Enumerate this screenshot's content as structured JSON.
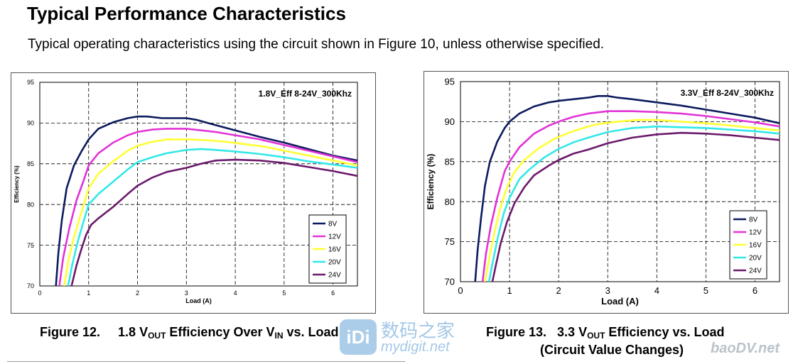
{
  "page": {
    "title": "Typical Performance Characteristics",
    "subtitle": "Typical operating characteristics using the circuit shown in Figure 10, unless otherwise specified."
  },
  "captions": {
    "fig12": {
      "prefix": "Figure 12.",
      "pre": "1.8 V",
      "sub1": "OUT",
      "mid": " Efficiency Over V",
      "sub2": "IN",
      "post": " vs. Load"
    },
    "fig13": {
      "prefix": "Figure 13.",
      "pre": "3.3 V",
      "sub1": "OUT",
      "post": " Efficiency vs. Load",
      "line2": "(Circuit Value Changes)"
    }
  },
  "watermarks": {
    "cn": "数码之家",
    "en": "mydigit.net",
    "logo": "iDi",
    "other": "baoDV.net"
  },
  "colors": {
    "8V": "#0d1b5e",
    "12V": "#e233d6",
    "16V": "#ffff33",
    "20V": "#33e8e8",
    "24V": "#6b1a6b"
  },
  "chart_data": [
    {
      "type": "line",
      "title": "1.8V_Eff 8-24V_300Khz",
      "xlabel": "Load (A)",
      "ylabel": "Efficiency (%)",
      "xlim": [
        0,
        6.5
      ],
      "ylim": [
        70,
        95
      ],
      "xticks": [
        0,
        1,
        2,
        3,
        4,
        5,
        6
      ],
      "yticks": [
        70,
        75,
        80,
        85,
        90,
        95
      ],
      "grid": "dashed",
      "legend_position": "bottom-right",
      "series": [
        {
          "name": "8V",
          "x": [
            0.33,
            0.38,
            0.45,
            0.55,
            0.7,
            0.85,
            1.0,
            1.2,
            1.5,
            1.8,
            2.0,
            2.2,
            2.5,
            2.8,
            3.0,
            3.2,
            3.5,
            4.0,
            4.5,
            5.0,
            5.5,
            6.0,
            6.5
          ],
          "y": [
            70.0,
            74.0,
            78.0,
            82.0,
            84.8,
            86.5,
            88.0,
            89.3,
            90.1,
            90.6,
            90.8,
            90.8,
            90.6,
            90.6,
            90.6,
            90.4,
            89.9,
            89.1,
            88.3,
            87.6,
            86.8,
            86.0,
            85.4
          ]
        },
        {
          "name": "12V",
          "x": [
            0.4,
            0.48,
            0.6,
            0.75,
            0.9,
            1.0,
            1.2,
            1.5,
            1.8,
            2.0,
            2.3,
            2.6,
            3.0,
            3.3,
            3.6,
            4.0,
            4.5,
            5.0,
            5.5,
            6.0,
            6.5
          ],
          "y": [
            70.0,
            73.5,
            77.0,
            80.5,
            83.0,
            84.8,
            86.3,
            87.6,
            88.5,
            88.9,
            89.2,
            89.3,
            89.3,
            89.1,
            88.9,
            88.5,
            88.0,
            87.3,
            86.6,
            85.9,
            85.2
          ]
        },
        {
          "name": "16V",
          "x": [
            0.5,
            0.58,
            0.7,
            0.85,
            1.0,
            1.2,
            1.5,
            1.8,
            2.0,
            2.3,
            2.6,
            3.0,
            3.4,
            3.8,
            4.2,
            4.6,
            5.0,
            5.5,
            6.0,
            6.5
          ],
          "y": [
            70.0,
            73.0,
            76.0,
            79.0,
            82.0,
            83.8,
            85.3,
            86.6,
            87.2,
            87.7,
            88.0,
            88.0,
            87.9,
            87.7,
            87.4,
            87.1,
            86.6,
            86.0,
            85.4,
            84.8
          ]
        },
        {
          "name": "20V",
          "x": [
            0.58,
            0.66,
            0.78,
            0.9,
            1.0,
            1.2,
            1.5,
            1.8,
            2.0,
            2.3,
            2.6,
            3.0,
            3.3,
            3.6,
            4.0,
            4.5,
            5.0,
            5.5,
            6.0,
            6.5
          ],
          "y": [
            70.0,
            72.5,
            75.5,
            78.0,
            80.0,
            81.3,
            82.8,
            84.3,
            85.2,
            85.8,
            86.3,
            86.7,
            86.8,
            86.7,
            86.5,
            86.2,
            85.8,
            85.3,
            84.9,
            84.5
          ]
        },
        {
          "name": "24V",
          "x": [
            0.65,
            0.75,
            0.85,
            0.95,
            1.05,
            1.2,
            1.5,
            1.8,
            2.0,
            2.3,
            2.6,
            3.0,
            3.3,
            3.6,
            4.0,
            4.5,
            5.0,
            5.5,
            6.0,
            6.5
          ],
          "y": [
            70.0,
            72.5,
            74.5,
            76.3,
            77.5,
            78.3,
            79.7,
            81.3,
            82.3,
            83.3,
            84.0,
            84.5,
            85.0,
            85.4,
            85.5,
            85.4,
            85.1,
            84.6,
            84.1,
            83.5
          ]
        }
      ]
    },
    {
      "type": "line",
      "title": "3.3V_Eff 8-24V_300Khz",
      "xlabel": "Load (A)",
      "ylabel": "Efficiency (%)",
      "xlim": [
        0,
        6.5
      ],
      "ylim": [
        70,
        95
      ],
      "xticks": [
        0,
        1,
        2,
        3,
        4,
        5,
        6
      ],
      "yticks": [
        70,
        75,
        80,
        85,
        90,
        95
      ],
      "grid": "dashed",
      "legend_position": "bottom-right",
      "series": [
        {
          "name": "8V",
          "x": [
            0.3,
            0.35,
            0.42,
            0.5,
            0.6,
            0.75,
            0.9,
            1.0,
            1.2,
            1.5,
            1.8,
            2.0,
            2.3,
            2.6,
            2.8,
            3.0,
            3.2,
            3.5,
            4.0,
            4.5,
            5.0,
            5.5,
            6.0,
            6.5
          ],
          "y": [
            70.0,
            74.0,
            78.0,
            82.0,
            85.0,
            87.5,
            89.2,
            90.0,
            91.0,
            91.9,
            92.4,
            92.6,
            92.8,
            93.0,
            93.2,
            93.2,
            93.0,
            92.8,
            92.4,
            92.0,
            91.5,
            91.0,
            90.5,
            89.8
          ]
        },
        {
          "name": "12V",
          "x": [
            0.45,
            0.52,
            0.62,
            0.75,
            0.9,
            1.0,
            1.2,
            1.5,
            1.8,
            2.0,
            2.3,
            2.6,
            3.0,
            3.5,
            4.0,
            4.5,
            5.0,
            5.5,
            6.0,
            6.5
          ],
          "y": [
            70.0,
            73.5,
            77.0,
            80.5,
            83.8,
            85.0,
            86.8,
            88.5,
            89.5,
            90.0,
            90.6,
            91.0,
            91.3,
            91.3,
            91.2,
            91.0,
            90.7,
            90.3,
            89.9,
            89.4
          ]
        },
        {
          "name": "16V",
          "x": [
            0.5,
            0.58,
            0.68,
            0.8,
            0.95,
            1.1,
            1.3,
            1.6,
            1.9,
            2.2,
            2.5,
            2.8,
            3.2,
            3.6,
            4.0,
            4.5,
            5.0,
            5.5,
            6.0,
            6.5
          ],
          "y": [
            70.0,
            72.8,
            75.8,
            79.0,
            81.8,
            83.7,
            85.2,
            86.7,
            87.8,
            88.6,
            89.2,
            89.7,
            90.0,
            90.2,
            90.2,
            90.0,
            89.8,
            89.5,
            89.2,
            88.9
          ]
        },
        {
          "name": "20V",
          "x": [
            0.58,
            0.66,
            0.76,
            0.88,
            1.0,
            1.2,
            1.4,
            1.7,
            2.0,
            2.3,
            2.6,
            3.0,
            3.5,
            4.0,
            4.5,
            5.0,
            5.5,
            6.0,
            6.5
          ],
          "y": [
            70.0,
            72.5,
            75.5,
            78.5,
            80.5,
            82.8,
            84.0,
            85.5,
            86.6,
            87.4,
            88.0,
            88.7,
            89.2,
            89.4,
            89.3,
            89.2,
            89.0,
            88.8,
            88.5
          ]
        },
        {
          "name": "24V",
          "x": [
            0.65,
            0.72,
            0.82,
            0.95,
            1.1,
            1.3,
            1.5,
            1.8,
            2.0,
            2.3,
            2.6,
            3.0,
            3.5,
            4.0,
            4.5,
            5.0,
            5.5,
            6.0,
            6.5
          ],
          "y": [
            70.0,
            72.0,
            74.8,
            77.5,
            79.8,
            81.8,
            83.3,
            84.5,
            85.2,
            86.0,
            86.5,
            87.3,
            88.0,
            88.4,
            88.6,
            88.5,
            88.3,
            88.0,
            87.7
          ]
        }
      ]
    }
  ]
}
